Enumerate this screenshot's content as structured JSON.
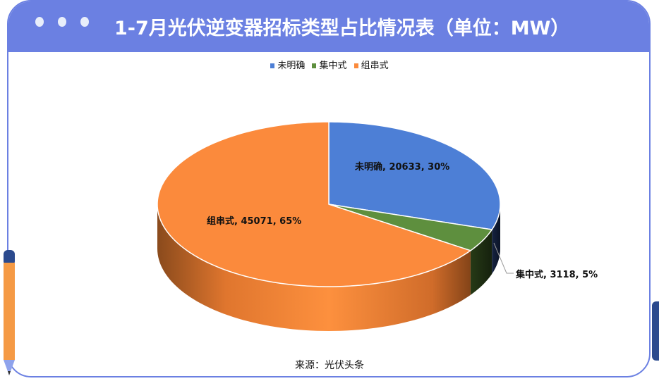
{
  "header": {
    "title": "1-7月光伏逆变器招标类型占比情况表（单位：MW）"
  },
  "source": "来源：光伏头条",
  "chart_data": {
    "type": "pie",
    "style": "3d",
    "title": "1-7月光伏逆变器招标类型占比情况表（单位：MW）",
    "legend_position": "top",
    "categories": [
      "未明确",
      "集中式",
      "组串式"
    ],
    "values": [
      20633,
      3118,
      45071
    ],
    "percents": [
      30,
      5,
      65
    ],
    "colors": [
      "#4d7fd6",
      "#5e8f3e",
      "#fb8a3c"
    ],
    "labels": [
      "未明确, 20633, 30%",
      "集中式, 3118, 5%",
      "组串式, 45071, 65%"
    ]
  }
}
